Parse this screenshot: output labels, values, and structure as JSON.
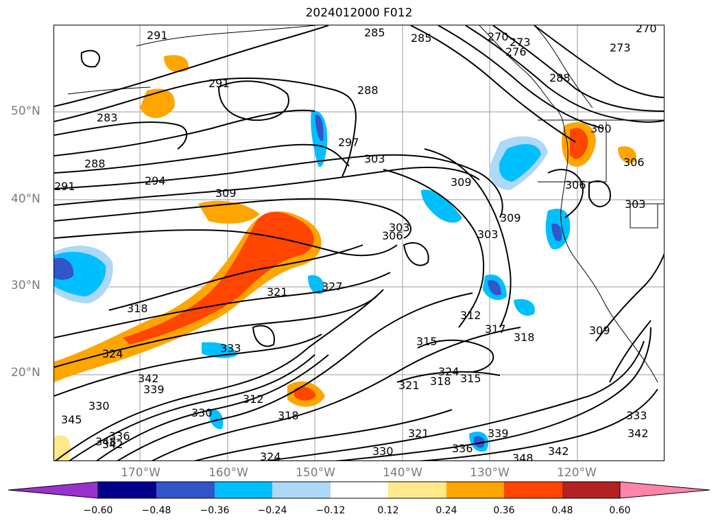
{
  "title": "2024012000 F012",
  "map": {
    "lat_ticks": [
      "50°N",
      "40°N",
      "30°N",
      "20°N"
    ],
    "lon_ticks": [
      "170°W",
      "160°W",
      "150°W",
      "140°W",
      "130°W",
      "120°W"
    ],
    "contour_labels": [
      "291",
      "285",
      "285",
      "270",
      "273",
      "276",
      "270",
      "273",
      "288",
      "291",
      "283",
      "288",
      "288",
      "297",
      "303",
      "300",
      "294",
      "309",
      "309",
      "306",
      "291",
      "303",
      "306",
      "309",
      "303",
      "303",
      "306",
      "321",
      "327",
      "318",
      "312",
      "317",
      "318",
      "324",
      "315",
      "324",
      "321",
      "318",
      "315",
      "309",
      "333",
      "342",
      "330",
      "336",
      "345",
      "339",
      "342",
      "348",
      "330",
      "312",
      "318",
      "324",
      "321",
      "330",
      "336",
      "339",
      "348",
      "342",
      "333",
      "342"
    ],
    "shading_colors": {
      "neg_extreme": "#9932cc",
      "neg_060": "#00008b",
      "neg_048": "#3355cc",
      "neg_036": "#00bfff",
      "neg_024": "#add8f8",
      "neutral": "#ffffff",
      "pos_012": "#ffe98a",
      "pos_024": "#ffa500",
      "pos_036": "#ff4500",
      "pos_048": "#b22222",
      "pos_extreme": "#ff85a8"
    }
  },
  "colorbar": {
    "ticks": [
      "−0.60",
      "−0.48",
      "−0.36",
      "−0.24",
      "−0.12",
      "0.12",
      "0.24",
      "0.36",
      "0.48",
      "0.60"
    ],
    "colors": [
      "#9932cc",
      "#00008b",
      "#3355cc",
      "#00bfff",
      "#add8f8",
      "#ffffff",
      "#ffe98a",
      "#ffa500",
      "#ff4500",
      "#b22222",
      "#ff85a8"
    ]
  }
}
